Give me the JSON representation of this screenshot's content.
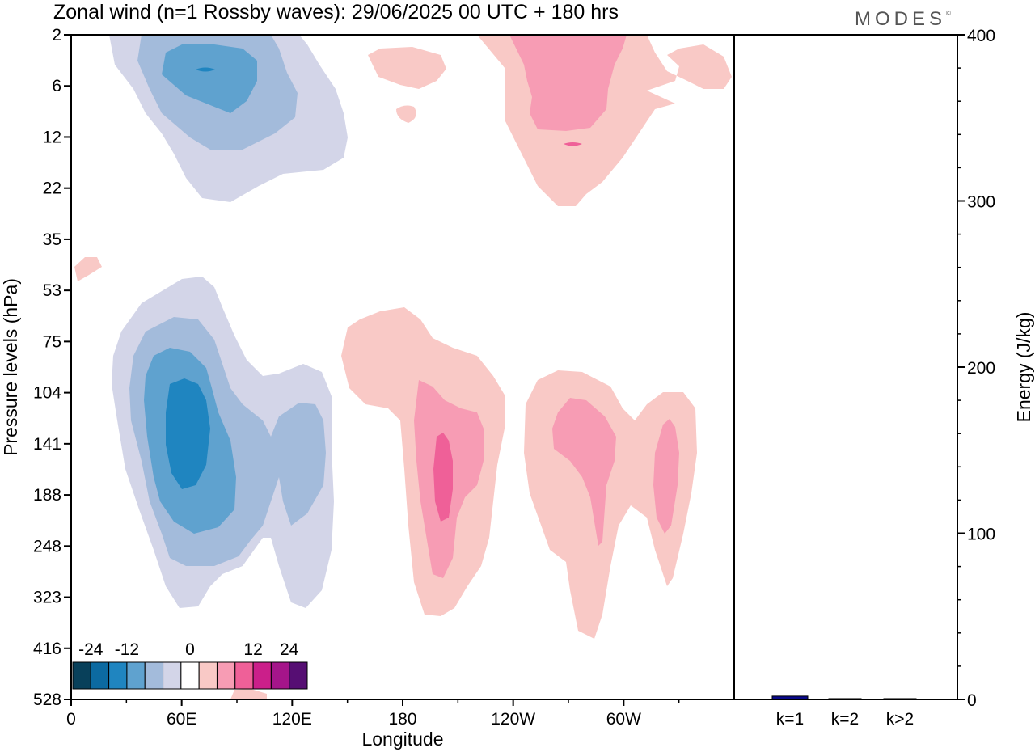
{
  "header": {
    "title": "Zonal wind (n=1 Rossby waves):  29/06/2025  00 UTC  + 180 hrs",
    "logo_text": "MODES",
    "logo_mark": "©"
  },
  "chart_data": [
    {
      "type": "heatmap",
      "title": "Zonal wind (n=1 Rossby waves):  29/06/2025  00 UTC  + 180 hrs",
      "xlabel": "Longitude",
      "ylabel": "Pressure levels (hPa)",
      "x_ticks": [
        "0",
        "60E",
        "120E",
        "180",
        "120W",
        "60W"
      ],
      "x_tick_degrees": [
        0,
        60,
        120,
        180,
        240,
        300
      ],
      "xlim_degrees": [
        0,
        360
      ],
      "y_ticks": [
        "2",
        "6",
        "12",
        "22",
        "35",
        "53",
        "75",
        "104",
        "141",
        "188",
        "248",
        "323",
        "416",
        "528"
      ],
      "y_scale": "model levels (non-linear, decreasing upward)",
      "grid": false,
      "colorbar": {
        "placement": "bottom-left",
        "labels": [
          "-24",
          "-12",
          "0",
          "12",
          "24"
        ],
        "label_values": [
          -24,
          -12,
          0,
          12,
          24
        ],
        "bins": [
          {
            "from": -30,
            "to": -24,
            "color": "#08405a"
          },
          {
            "from": -24,
            "to": -18,
            "color": "#0c6aa1"
          },
          {
            "from": -18,
            "to": -12,
            "color": "#1f85c0"
          },
          {
            "from": -12,
            "to": -8,
            "color": "#5fa2cf"
          },
          {
            "from": -8,
            "to": -4,
            "color": "#a3bbdb"
          },
          {
            "from": -4,
            "to": -2,
            "color": "#d3d5e8"
          },
          {
            "from": -2,
            "to": 2,
            "color": "#ffffff"
          },
          {
            "from": 2,
            "to": 4,
            "color": "#f9c9c6"
          },
          {
            "from": 4,
            "to": 8,
            "color": "#f79cb4"
          },
          {
            "from": 8,
            "to": 12,
            "color": "#ef6098"
          },
          {
            "from": 12,
            "to": 18,
            "color": "#cb1f8a"
          },
          {
            "from": 18,
            "to": 24,
            "color": "#a5158a"
          },
          {
            "from": 24,
            "to": 30,
            "color": "#560e73"
          }
        ]
      },
      "regions": [
        {
          "name": "upper-negative",
          "level_range": [
            "2",
            "22"
          ],
          "lon_range": [
            "30E",
            "120E"
          ],
          "min": -24
        },
        {
          "name": "upper-positive-west",
          "level_range": [
            "2",
            "12"
          ],
          "lon_range": [
            "160E",
            "170W"
          ],
          "max": 4
        },
        {
          "name": "upper-positive",
          "level_range": [
            "2",
            "22"
          ],
          "lon_range": [
            "140W",
            "0"
          ],
          "max": 12
        },
        {
          "name": "lower-negative",
          "level_range": [
            "53",
            "323"
          ],
          "lon_range": [
            "30E",
            "140E"
          ],
          "min": -24
        },
        {
          "name": "lower-positive-1",
          "level_range": [
            "75",
            "323"
          ],
          "lon_range": [
            "160E",
            "120W"
          ],
          "max": 12
        },
        {
          "name": "lower-positive-2",
          "level_range": [
            "104",
            "416"
          ],
          "lon_range": [
            "100W",
            "30W"
          ],
          "max": 8
        }
      ]
    },
    {
      "type": "bar",
      "categories": [
        "k=1",
        "k=2",
        "k>2"
      ],
      "values": [
        2,
        0.5,
        0.5
      ],
      "ylabel": "Energy (J/kg)",
      "ylim": [
        0,
        400
      ],
      "y_ticks": [
        0,
        100,
        200,
        300,
        400
      ],
      "bar_color": "#0a0a8a"
    }
  ]
}
